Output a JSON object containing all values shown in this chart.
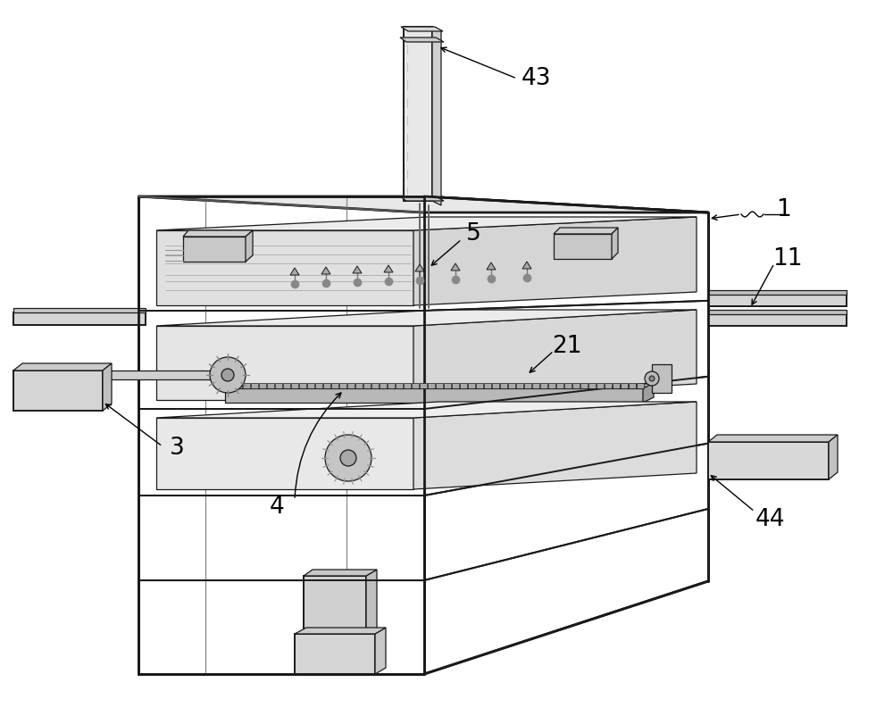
{
  "bg_color": "#ffffff",
  "line_color": "#1a1a1a",
  "label_fontsize": 19,
  "figsize": [
    10.0,
    8.02
  ],
  "dpi": 100
}
